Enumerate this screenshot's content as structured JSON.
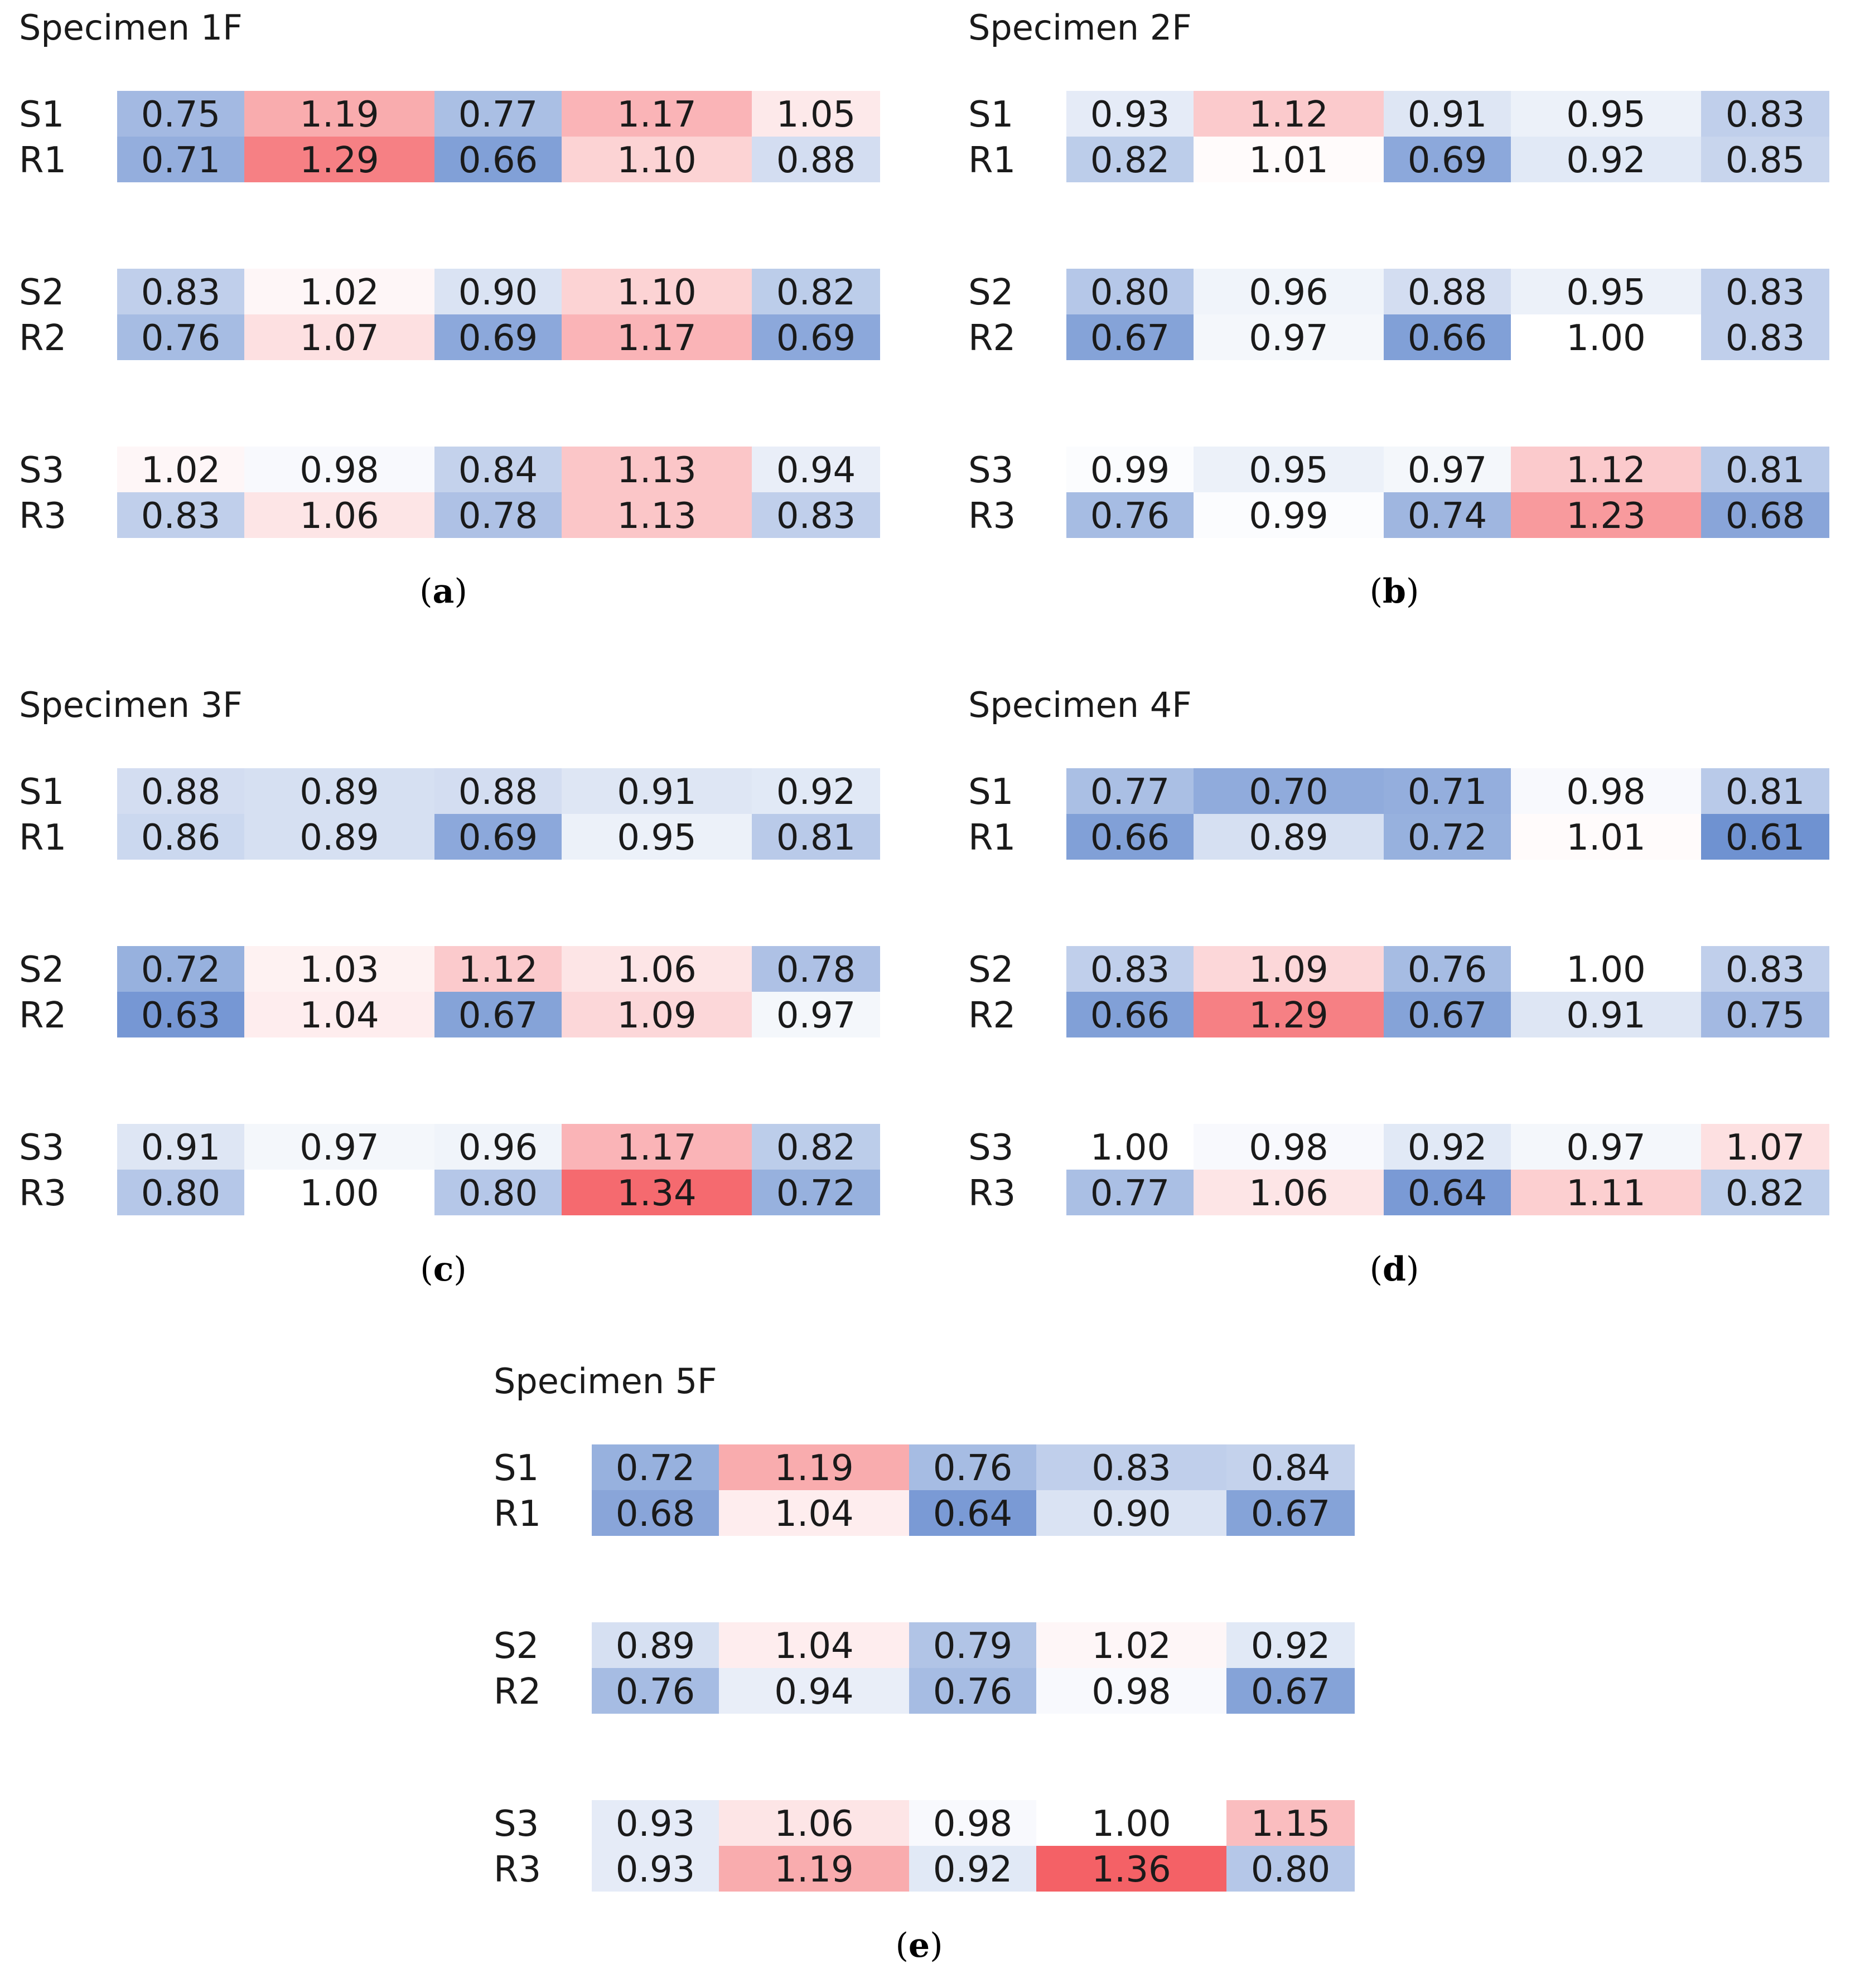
{
  "colors": {
    "low": "#6b8fd0",
    "mid": "#ffffff",
    "high": "#f46166"
  },
  "color_scale": {
    "min": 0.6,
    "center": 1.0,
    "max": 1.36
  },
  "chart_data": [
    {
      "type": "heatmap",
      "title": "Specimen 1F",
      "caption": "a",
      "row_labels": [
        "S1",
        "R1",
        "S2",
        "R2",
        "S3",
        "R3"
      ],
      "values": [
        [
          0.75,
          1.19,
          0.77,
          1.17,
          1.05
        ],
        [
          0.71,
          1.29,
          0.66,
          1.1,
          0.88
        ],
        [
          0.83,
          1.02,
          0.9,
          1.1,
          0.82
        ],
        [
          0.76,
          1.07,
          0.69,
          1.17,
          0.69
        ],
        [
          1.02,
          0.98,
          0.84,
          1.13,
          0.94
        ],
        [
          0.83,
          1.06,
          0.78,
          1.13,
          0.83
        ]
      ]
    },
    {
      "type": "heatmap",
      "title": "Specimen 2F",
      "caption": "b",
      "row_labels": [
        "S1",
        "R1",
        "S2",
        "R2",
        "S3",
        "R3"
      ],
      "values": [
        [
          0.93,
          1.12,
          0.91,
          0.95,
          0.83
        ],
        [
          0.82,
          1.01,
          0.69,
          0.92,
          0.85
        ],
        [
          0.8,
          0.96,
          0.88,
          0.95,
          0.83
        ],
        [
          0.67,
          0.97,
          0.66,
          1.0,
          0.83
        ],
        [
          0.99,
          0.95,
          0.97,
          1.12,
          0.81
        ],
        [
          0.76,
          0.99,
          0.74,
          1.23,
          0.68
        ]
      ]
    },
    {
      "type": "heatmap",
      "title": "Specimen 3F",
      "caption": "c",
      "row_labels": [
        "S1",
        "R1",
        "S2",
        "R2",
        "S3",
        "R3"
      ],
      "values": [
        [
          0.88,
          0.89,
          0.88,
          0.91,
          0.92
        ],
        [
          0.86,
          0.89,
          0.69,
          0.95,
          0.81
        ],
        [
          0.72,
          1.03,
          1.12,
          1.06,
          0.78
        ],
        [
          0.63,
          1.04,
          0.67,
          1.09,
          0.97
        ],
        [
          0.91,
          0.97,
          0.96,
          1.17,
          0.82
        ],
        [
          0.8,
          1.0,
          0.8,
          1.34,
          0.72
        ]
      ]
    },
    {
      "type": "heatmap",
      "title": "Specimen 4F",
      "caption": "d",
      "row_labels": [
        "S1",
        "R1",
        "S2",
        "R2",
        "S3",
        "R3"
      ],
      "values": [
        [
          0.77,
          0.7,
          0.71,
          0.98,
          0.81
        ],
        [
          0.66,
          0.89,
          0.72,
          1.01,
          0.61
        ],
        [
          0.83,
          1.09,
          0.76,
          1.0,
          0.83
        ],
        [
          0.66,
          1.29,
          0.67,
          0.91,
          0.75
        ],
        [
          1.0,
          0.98,
          0.92,
          0.97,
          1.07
        ],
        [
          0.77,
          1.06,
          0.64,
          1.11,
          0.82
        ]
      ]
    },
    {
      "type": "heatmap",
      "title": "Specimen 5F",
      "caption": "e",
      "row_labels": [
        "S1",
        "R1",
        "S2",
        "R2",
        "S3",
        "R3"
      ],
      "values": [
        [
          0.72,
          1.19,
          0.76,
          0.83,
          0.84
        ],
        [
          0.68,
          1.04,
          0.64,
          0.9,
          0.67
        ],
        [
          0.89,
          1.04,
          0.79,
          1.02,
          0.92
        ],
        [
          0.76,
          0.94,
          0.76,
          0.98,
          0.67
        ],
        [
          0.93,
          1.06,
          0.98,
          1.0,
          1.15
        ],
        [
          0.93,
          1.19,
          0.92,
          1.36,
          0.8
        ]
      ]
    }
  ]
}
